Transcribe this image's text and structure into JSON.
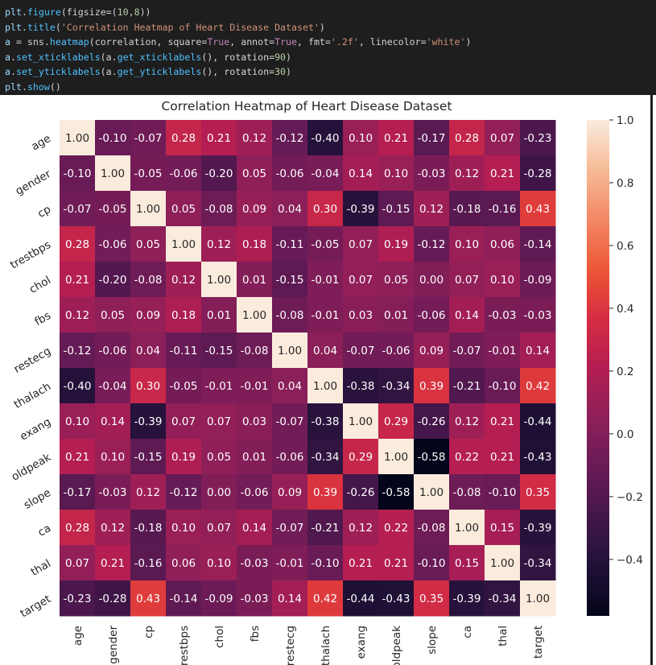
{
  "code_cell": {
    "lines": [
      [
        {
          "t": "plt",
          "c": "c-obj"
        },
        {
          "t": ".",
          "c": "c-p"
        },
        {
          "t": "figure",
          "c": "c-fn"
        },
        {
          "t": "(figsize=(",
          "c": "c-p"
        },
        {
          "t": "10",
          "c": "c-num"
        },
        {
          "t": ",",
          "c": "c-p"
        },
        {
          "t": "8",
          "c": "c-num"
        },
        {
          "t": "))",
          "c": "c-p"
        }
      ],
      [
        {
          "t": "plt",
          "c": "c-obj"
        },
        {
          "t": ".",
          "c": "c-p"
        },
        {
          "t": "title",
          "c": "c-fn"
        },
        {
          "t": "(",
          "c": "c-p"
        },
        {
          "t": "'Correlation Heatmap of Heart Disease Dataset'",
          "c": "c-str"
        },
        {
          "t": ")",
          "c": "c-p"
        }
      ],
      [
        {
          "t": "a",
          "c": "c-obj"
        },
        {
          "t": " = sns.",
          "c": "c-p"
        },
        {
          "t": "heatmap",
          "c": "c-fn"
        },
        {
          "t": "(correlation, square=",
          "c": "c-p"
        },
        {
          "t": "True",
          "c": "c-kw"
        },
        {
          "t": ", annot=",
          "c": "c-p"
        },
        {
          "t": "True",
          "c": "c-kw"
        },
        {
          "t": ", fmt=",
          "c": "c-p"
        },
        {
          "t": "'.2f'",
          "c": "c-str"
        },
        {
          "t": ", linecolor=",
          "c": "c-p"
        },
        {
          "t": "'white'",
          "c": "c-str"
        },
        {
          "t": ")",
          "c": "c-p"
        }
      ],
      [
        {
          "t": "a",
          "c": "c-obj"
        },
        {
          "t": ".",
          "c": "c-p"
        },
        {
          "t": "set_xticklabels",
          "c": "c-fn"
        },
        {
          "t": "(a.",
          "c": "c-p"
        },
        {
          "t": "get_xticklabels",
          "c": "c-fn"
        },
        {
          "t": "(), rotation=",
          "c": "c-p"
        },
        {
          "t": "90",
          "c": "c-num"
        },
        {
          "t": ")",
          "c": "c-p"
        }
      ],
      [
        {
          "t": "a",
          "c": "c-obj"
        },
        {
          "t": ".",
          "c": "c-p"
        },
        {
          "t": "set_yticklabels",
          "c": "c-fn"
        },
        {
          "t": "(a.",
          "c": "c-p"
        },
        {
          "t": "get_yticklabels",
          "c": "c-fn"
        },
        {
          "t": "(), rotation=",
          "c": "c-p"
        },
        {
          "t": "30",
          "c": "c-num"
        },
        {
          "t": ")",
          "c": "c-p"
        }
      ],
      [
        {
          "t": "plt",
          "c": "c-obj"
        },
        {
          "t": ".",
          "c": "c-p"
        },
        {
          "t": "show",
          "c": "c-fn"
        },
        {
          "t": "()",
          "c": "c-p"
        }
      ]
    ]
  },
  "chart_data": {
    "type": "heatmap",
    "title": "Correlation Heatmap of Heart Disease Dataset",
    "x_labels": [
      "age",
      "gender",
      "cp",
      "trestbps",
      "chol",
      "fbs",
      "restecg",
      "thalach",
      "exang",
      "oldpeak",
      "slope",
      "ca",
      "thal",
      "target"
    ],
    "y_labels": [
      "age",
      "gender",
      "cp",
      "trestbps",
      "chol",
      "fbs",
      "restecg",
      "thalach",
      "exang",
      "oldpeak",
      "slope",
      "ca",
      "thal",
      "target"
    ],
    "values": [
      [
        1.0,
        -0.1,
        -0.07,
        0.28,
        0.21,
        0.12,
        -0.12,
        -0.4,
        0.1,
        0.21,
        -0.17,
        0.28,
        0.07,
        -0.23
      ],
      [
        -0.1,
        1.0,
        -0.05,
        -0.06,
        -0.2,
        0.05,
        -0.06,
        -0.04,
        0.14,
        0.1,
        -0.03,
        0.12,
        0.21,
        -0.28
      ],
      [
        -0.07,
        -0.05,
        1.0,
        0.05,
        -0.08,
        0.09,
        0.04,
        0.3,
        -0.39,
        -0.15,
        0.12,
        -0.18,
        -0.16,
        0.43
      ],
      [
        0.28,
        -0.06,
        0.05,
        1.0,
        0.12,
        0.18,
        -0.11,
        -0.05,
        0.07,
        0.19,
        -0.12,
        0.1,
        0.06,
        -0.14
      ],
      [
        0.21,
        -0.2,
        -0.08,
        0.12,
        1.0,
        0.01,
        -0.15,
        -0.01,
        0.07,
        0.05,
        -0.0,
        0.07,
        0.1,
        -0.09
      ],
      [
        0.12,
        0.05,
        0.09,
        0.18,
        0.01,
        1.0,
        -0.08,
        -0.01,
        0.03,
        0.01,
        -0.06,
        0.14,
        -0.03,
        -0.03
      ],
      [
        -0.12,
        -0.06,
        0.04,
        -0.11,
        -0.15,
        -0.08,
        1.0,
        0.04,
        -0.07,
        -0.06,
        0.09,
        -0.07,
        -0.01,
        0.14
      ],
      [
        -0.4,
        -0.04,
        0.3,
        -0.05,
        -0.01,
        -0.01,
        0.04,
        1.0,
        -0.38,
        -0.34,
        0.39,
        -0.21,
        -0.1,
        0.42
      ],
      [
        0.1,
        0.14,
        -0.39,
        0.07,
        0.07,
        0.03,
        -0.07,
        -0.38,
        1.0,
        0.29,
        -0.26,
        0.12,
        0.21,
        -0.44
      ],
      [
        0.21,
        0.1,
        -0.15,
        0.19,
        0.05,
        0.01,
        -0.06,
        -0.34,
        0.29,
        1.0,
        -0.58,
        0.22,
        0.21,
        -0.43
      ],
      [
        -0.17,
        -0.03,
        0.12,
        -0.12,
        -0.0,
        -0.06,
        0.09,
        0.39,
        -0.26,
        -0.58,
        1.0,
        -0.08,
        -0.1,
        0.35
      ],
      [
        0.28,
        0.12,
        -0.18,
        0.1,
        0.07,
        0.14,
        -0.07,
        -0.21,
        0.12,
        0.22,
        -0.08,
        1.0,
        0.15,
        -0.39
      ],
      [
        0.07,
        0.21,
        -0.16,
        0.06,
        0.1,
        -0.03,
        -0.01,
        -0.1,
        0.21,
        0.21,
        -0.1,
        0.15,
        1.0,
        -0.34
      ],
      [
        -0.23,
        -0.28,
        0.43,
        -0.14,
        -0.09,
        -0.03,
        0.14,
        0.42,
        -0.44,
        -0.43,
        0.35,
        -0.39,
        -0.34,
        1.0
      ]
    ],
    "value_format": ".2f",
    "colormap": "rocket",
    "vmin": -0.58,
    "vmax": 1.0,
    "colorbar_ticks": [
      "1.0",
      "0.8",
      "0.6",
      "0.4",
      "0.2",
      "0.0",
      "−0.2",
      "−0.4"
    ],
    "colorbar_tick_values": [
      1.0,
      0.8,
      0.6,
      0.4,
      0.2,
      0.0,
      -0.2,
      -0.4
    ],
    "x_label_rotation": 90,
    "y_label_rotation": 30,
    "grid": false
  }
}
